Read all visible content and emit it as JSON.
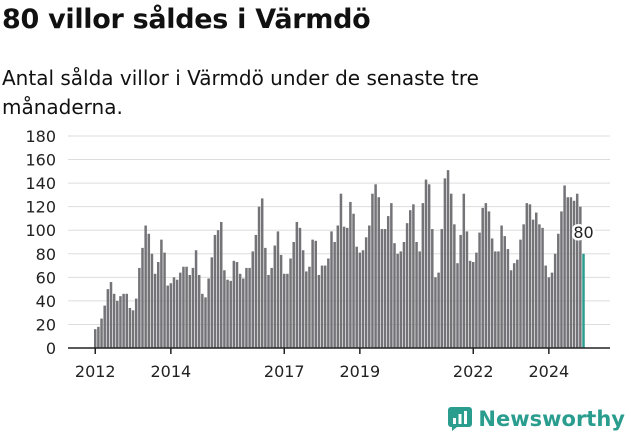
{
  "title": "80 villor såldes i Värmdö",
  "subtitle": "Antal sålda villor i Värmdö under de senaste tre månaderna.",
  "brand": "Newsworthy",
  "colors": {
    "bar": "#747378",
    "highlight": "#2a9d8f",
    "brand": "#2a9d8f"
  },
  "chart_data": {
    "type": "bar",
    "title": "",
    "xlabel": "",
    "ylabel": "",
    "ylim": [
      0,
      180
    ],
    "yticks": [
      0,
      20,
      40,
      60,
      80,
      100,
      120,
      140,
      160,
      180
    ],
    "grid": true,
    "x_tick_labels": [
      {
        "label": "2012",
        "index": 0
      },
      {
        "label": "2014",
        "index": 24
      },
      {
        "label": "2017",
        "index": 60
      },
      {
        "label": "2019",
        "index": 84
      },
      {
        "label": "2022",
        "index": 120
      },
      {
        "label": "2024",
        "index": 144
      }
    ],
    "highlight_label": "80",
    "values": [
      16,
      18,
      25,
      36,
      50,
      56,
      46,
      40,
      44,
      46,
      46,
      34,
      32,
      42,
      68,
      85,
      104,
      97,
      80,
      63,
      73,
      92,
      81,
      53,
      55,
      60,
      58,
      64,
      69,
      69,
      62,
      68,
      83,
      62,
      46,
      43,
      59,
      77,
      96,
      100,
      107,
      66,
      58,
      57,
      74,
      73,
      63,
      59,
      68,
      68,
      82,
      96,
      120,
      127,
      85,
      62,
      68,
      87,
      99,
      79,
      63,
      63,
      76,
      90,
      107,
      102,
      83,
      65,
      69,
      92,
      91,
      62,
      70,
      70,
      76,
      99,
      90,
      104,
      131,
      103,
      102,
      124,
      114,
      86,
      81,
      83,
      94,
      104,
      131,
      139,
      128,
      101,
      101,
      112,
      123,
      89,
      80,
      82,
      90,
      106,
      117,
      122,
      90,
      82,
      123,
      143,
      139,
      101,
      60,
      64,
      101,
      144,
      151,
      131,
      105,
      72,
      96,
      131,
      99,
      74,
      73,
      81,
      98,
      119,
      123,
      116,
      93,
      82,
      82,
      104,
      95,
      84,
      66,
      72,
      75,
      92,
      105,
      123,
      122,
      109,
      115,
      105,
      102,
      70,
      60,
      64,
      80,
      97,
      116,
      138,
      128,
      128,
      125,
      131,
      120,
      80
    ]
  }
}
